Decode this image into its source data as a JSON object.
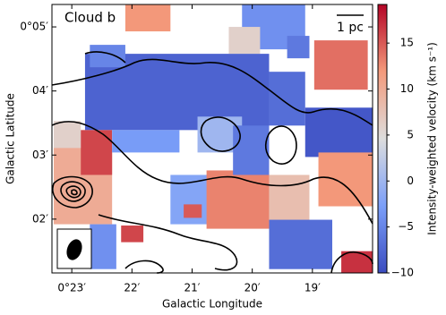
{
  "chart_data": {
    "type": "heatmap",
    "title": "Cloud b",
    "scale_bar_label": "1 pc",
    "x_label": "Galactic Longitude",
    "y_label": "Galactic Latitude",
    "colorbar_label": "Intensity-weighted velocity (km s⁻¹)",
    "colormap": "coolwarm",
    "xlim": [
      23.33,
      18.0
    ],
    "ylim": [
      1.16,
      5.35
    ],
    "xticks": [
      {
        "value": 23,
        "label": "0°23′"
      },
      {
        "value": 22,
        "label": "22′"
      },
      {
        "value": 21,
        "label": "21′"
      },
      {
        "value": 20,
        "label": "20′"
      },
      {
        "value": 19,
        "label": "19′"
      }
    ],
    "yticks": [
      {
        "value": 2,
        "label": "02′"
      },
      {
        "value": 3,
        "label": "03′"
      },
      {
        "value": 4,
        "label": "04′"
      },
      {
        "value": 5,
        "label": "0°05′"
      }
    ],
    "clim": [
      -10,
      19.2
    ],
    "cticks": [
      {
        "value": -10,
        "label": "−10"
      },
      {
        "value": -5,
        "label": "−5"
      },
      0,
      5,
      10,
      15
    ],
    "patches": [
      {
        "x": [
          22.11,
          21.36
        ],
        "y": [
          4.93,
          5.35
        ],
        "value": 12
      },
      {
        "x": [
          20.17,
          19.12
        ],
        "y": [
          4.65,
          5.35
        ],
        "value": -4
      },
      {
        "x": [
          20.39,
          19.87
        ],
        "y": [
          4.58,
          5.0
        ],
        "value": 6
      },
      {
        "x": [
          19.42,
          19.05
        ],
        "y": [
          4.51,
          4.86
        ],
        "value": -6
      },
      {
        "x": [
          18.97,
          18.08
        ],
        "y": [
          4.02,
          4.79
        ],
        "value": 14
      },
      {
        "x": [
          22.78,
          19.72
        ],
        "y": [
          3.39,
          4.58
        ],
        "value": -8
      },
      {
        "x": [
          22.7,
          22.11
        ],
        "y": [
          4.37,
          4.72
        ],
        "value": -5
      },
      {
        "x": [
          19.72,
          19.12
        ],
        "y": [
          3.46,
          4.3
        ],
        "value": -7
      },
      {
        "x": [
          19.12,
          18.0
        ],
        "y": [
          2.97,
          3.74
        ],
        "value": -9
      },
      {
        "x": [
          20.91,
          20.17
        ],
        "y": [
          3.04,
          3.6
        ],
        "value": 0
      },
      {
        "x": [
          23.3,
          22.85
        ],
        "y": [
          3.04,
          3.53
        ],
        "value": 6
      },
      {
        "x": [
          23.3,
          22.33
        ],
        "y": [
          1.92,
          3.11
        ],
        "value": 10
      },
      {
        "x": [
          22.85,
          22.33
        ],
        "y": [
          2.69,
          3.39
        ],
        "value": 16
      },
      {
        "x": [
          22.33,
          21.21
        ],
        "y": [
          3.04,
          3.39
        ],
        "value": -3
      },
      {
        "x": [
          21.36,
          20.61
        ],
        "y": [
          1.92,
          2.69
        ],
        "value": -2
      },
      {
        "x": [
          20.76,
          19.72
        ],
        "y": [
          1.85,
          2.76
        ],
        "value": 13
      },
      {
        "x": [
          19.72,
          19.05
        ],
        "y": [
          1.92,
          2.69
        ],
        "value": 8
      },
      {
        "x": [
          19.72,
          18.67
        ],
        "y": [
          1.22,
          1.99
        ],
        "value": -7
      },
      {
        "x": [
          18.9,
          18.0
        ],
        "y": [
          2.2,
          3.04
        ],
        "value": 12
      },
      {
        "x": [
          20.32,
          19.72
        ],
        "y": [
          2.69,
          3.46
        ],
        "value": -6
      },
      {
        "x": [
          21.14,
          20.84
        ],
        "y": [
          2.02,
          2.23
        ],
        "value": 15
      },
      {
        "x": [
          22.18,
          21.81
        ],
        "y": [
          1.64,
          1.9
        ],
        "value": 16
      },
      {
        "x": [
          18.52,
          18.0
        ],
        "y": [
          1.16,
          1.5
        ],
        "value": 17
      },
      {
        "x": [
          22.7,
          22.26
        ],
        "y": [
          1.22,
          1.92
        ],
        "value": -4
      }
    ]
  }
}
